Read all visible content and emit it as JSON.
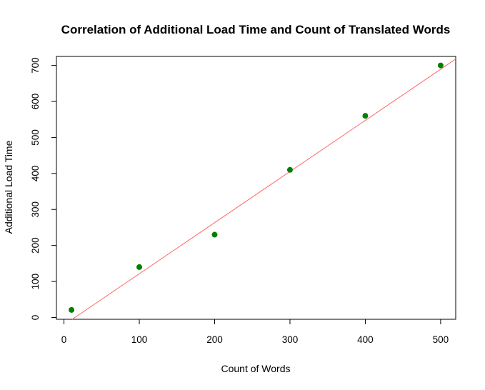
{
  "chart_data": {
    "type": "scatter",
    "title": "Correlation of Additional Load Time and Count of Translated Words",
    "xlabel": "Count of Words",
    "ylabel": "Additional Load Time",
    "xlim": [
      -10,
      520
    ],
    "ylim": [
      -5,
      725
    ],
    "x_ticks": [
      0,
      100,
      200,
      300,
      400,
      500
    ],
    "y_ticks": [
      0,
      100,
      200,
      300,
      400,
      500,
      600,
      700
    ],
    "points": [
      {
        "x": 10,
        "y": 21
      },
      {
        "x": 100,
        "y": 140
      },
      {
        "x": 200,
        "y": 230
      },
      {
        "x": 300,
        "y": 410
      },
      {
        "x": 400,
        "y": 560
      },
      {
        "x": 500,
        "y": 700
      }
    ],
    "fit_line": {
      "intercept": -20.6,
      "slope": 1.42
    },
    "point_color": "#008000",
    "line_color": "#ff6666",
    "grid": false,
    "legend": "none"
  }
}
